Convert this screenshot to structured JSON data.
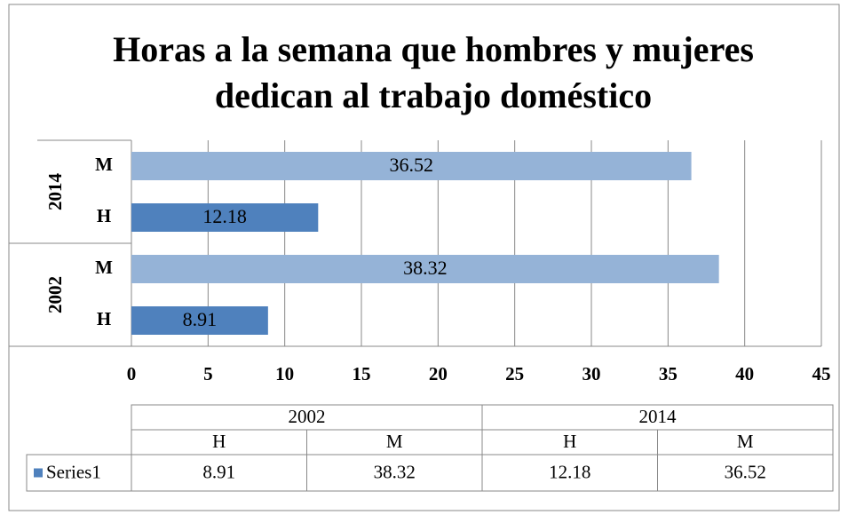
{
  "chart_data": {
    "type": "bar",
    "orientation": "horizontal",
    "title": "Horas a la semana que hombres y mujeres dedican al trabajo doméstico",
    "categories": [
      [
        "2002",
        "H"
      ],
      [
        "2002",
        "M"
      ],
      [
        "2014",
        "H"
      ],
      [
        "2014",
        "M"
      ]
    ],
    "series": [
      {
        "name": "Series1",
        "color": "#4f81bd",
        "point_colors": [
          "#4f81bd",
          "#95b3d7",
          "#4f81bd",
          "#95b3d7"
        ],
        "values": [
          8.91,
          38.32,
          12.18,
          36.52
        ]
      }
    ],
    "xlim": [
      0,
      45
    ],
    "xticks": [
      0,
      5,
      10,
      15,
      20,
      25,
      30,
      35,
      40,
      45
    ],
    "grid": true,
    "data_labels": true,
    "data_table": true
  }
}
